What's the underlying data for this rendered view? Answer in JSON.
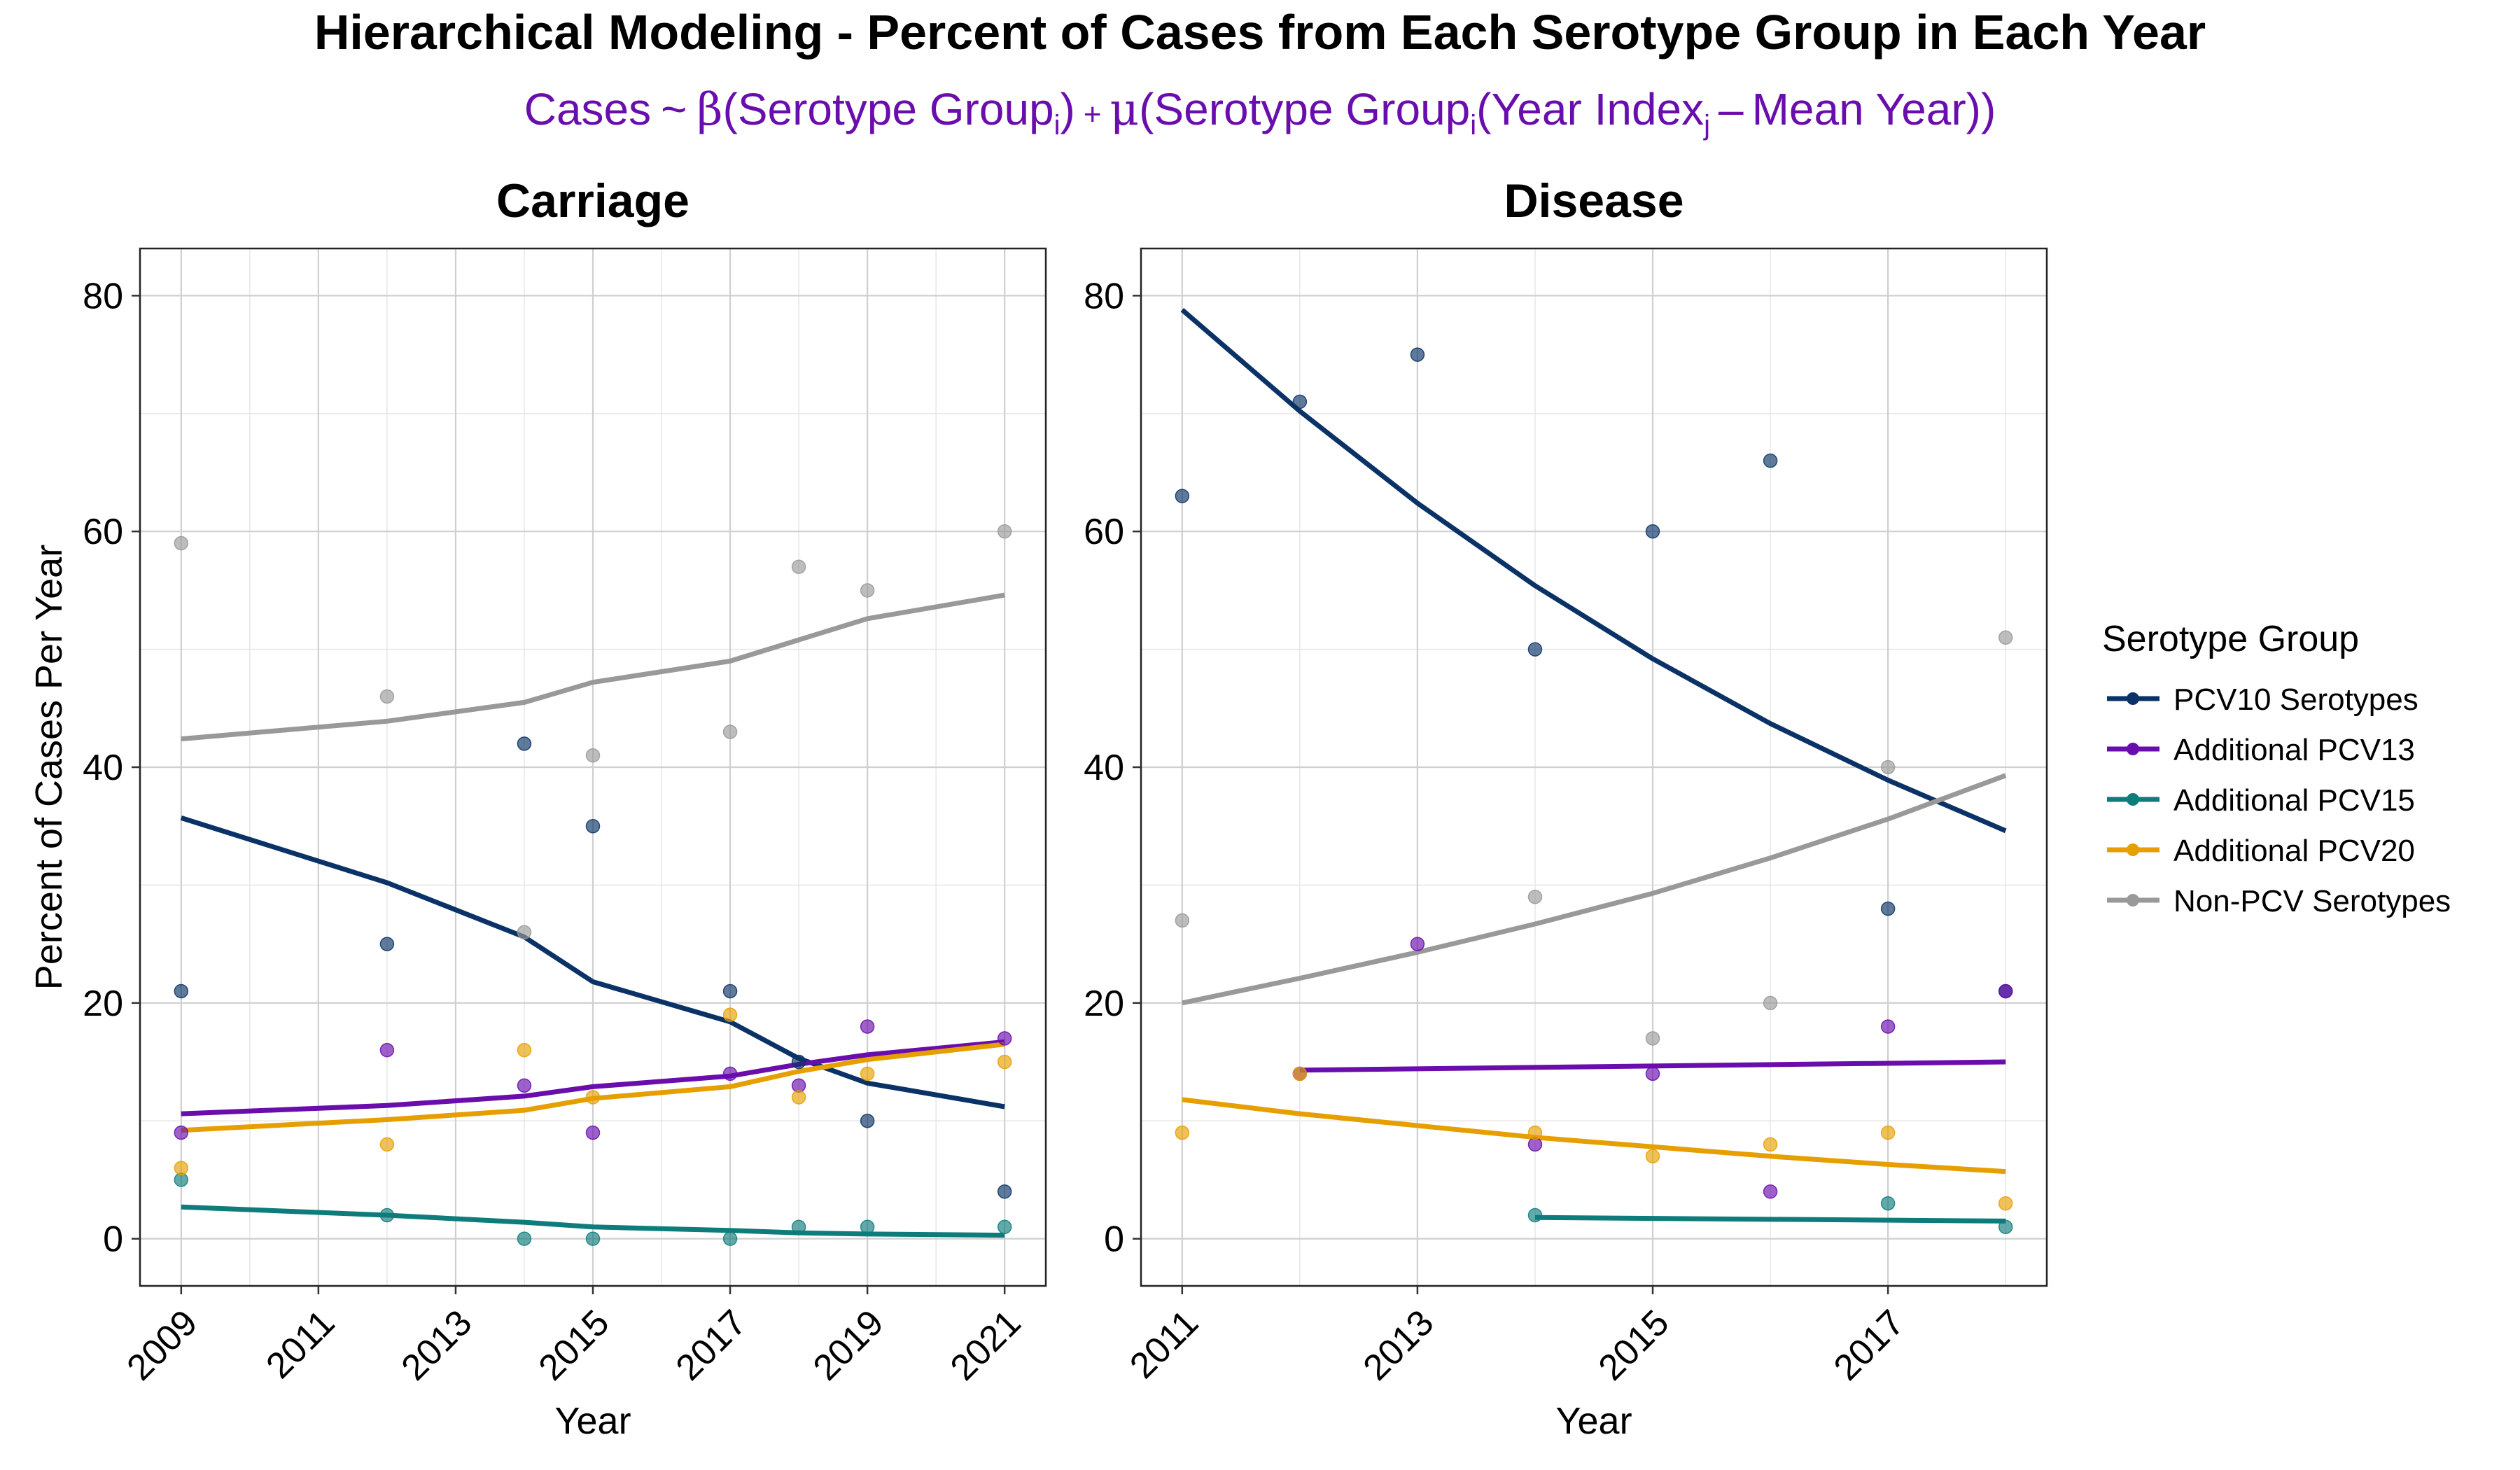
{
  "title": "Hierarchical Modeling - Percent of Cases from Each Serotype Group in Each Year",
  "subtitle": {
    "cases": "Cases",
    "tilde": "~",
    "beta": "β",
    "serotype_group": "Serotype Group",
    "sub_i": "i",
    "plus": "+",
    "mu": "μ",
    "year_index": "Year Index",
    "sub_j": "j",
    "minus": "–",
    "mean_year": "Mean Year"
  },
  "legend": {
    "title": "Serotype Group",
    "items": [
      {
        "label": "PCV10 Serotypes",
        "color": "#0B3267"
      },
      {
        "label": "Additional PCV13",
        "color": "#6A0DAD"
      },
      {
        "label": "Additional PCV15",
        "color": "#0E7C7B"
      },
      {
        "label": "Additional PCV20",
        "color": "#E69F00"
      },
      {
        "label": "Non-PCV Serotypes",
        "color": "#999999"
      }
    ]
  },
  "chart_data": [
    {
      "type": "line",
      "title": "Carriage",
      "xlabel": "Year",
      "ylabel": "Percent of Cases Per Year",
      "xlim": [
        2008.4,
        2021.6
      ],
      "ylim": [
        -4,
        84
      ],
      "x_ticks": [
        2009,
        2011,
        2013,
        2015,
        2017,
        2019,
        2021
      ],
      "y_ticks": [
        0,
        20,
        40,
        60,
        80
      ],
      "grid": true,
      "series": [
        {
          "name": "PCV10 Serotypes",
          "color": "#0B3267",
          "line": {
            "x": [
              2009,
              2012,
              2014,
              2015,
              2017,
              2018,
              2019,
              2021
            ],
            "y": [
              35.7,
              30.2,
              25.6,
              21.8,
              18.4,
              15.3,
              13.2,
              11.2
            ]
          },
          "points": {
            "x": [
              2009,
              2012,
              2014,
              2015,
              2017,
              2018,
              2019,
              2021
            ],
            "y": [
              21,
              25,
              42,
              35,
              21,
              15,
              10,
              4
            ]
          }
        },
        {
          "name": "Additional PCV13",
          "color": "#6A0DAD",
          "line": {
            "x": [
              2009,
              2012,
              2014,
              2015,
              2017,
              2018,
              2019,
              2021
            ],
            "y": [
              10.6,
              11.3,
              12.1,
              12.9,
              13.8,
              14.8,
              15.6,
              16.7
            ]
          },
          "points": {
            "x": [
              2009,
              2012,
              2014,
              2015,
              2017,
              2018,
              2019,
              2021
            ],
            "y": [
              9,
              16,
              13,
              9,
              14,
              13,
              18,
              17
            ]
          }
        },
        {
          "name": "Additional PCV15",
          "color": "#0E7C7B",
          "line": {
            "x": [
              2009,
              2012,
              2014,
              2015,
              2017,
              2018,
              2019,
              2021
            ],
            "y": [
              2.7,
              2.0,
              1.4,
              1.0,
              0.7,
              0.5,
              0.4,
              0.3
            ]
          },
          "points": {
            "x": [
              2009,
              2012,
              2014,
              2015,
              2017,
              2018,
              2019,
              2021
            ],
            "y": [
              5,
              2,
              0,
              0,
              0,
              1,
              1,
              1
            ]
          }
        },
        {
          "name": "Additional PCV20",
          "color": "#E69F00",
          "line": {
            "x": [
              2009,
              2012,
              2014,
              2015,
              2017,
              2018,
              2019,
              2021
            ],
            "y": [
              9.2,
              10.1,
              10.9,
              11.9,
              12.9,
              14.2,
              15.2,
              16.5
            ]
          },
          "points": {
            "x": [
              2009,
              2012,
              2014,
              2015,
              2017,
              2018,
              2019,
              2021
            ],
            "y": [
              6,
              8,
              16,
              12,
              19,
              12,
              14,
              15
            ]
          }
        },
        {
          "name": "Non-PCV Serotypes",
          "color": "#999999",
          "line": {
            "x": [
              2009,
              2012,
              2014,
              2015,
              2017,
              2018,
              2019,
              2021
            ],
            "y": [
              42.4,
              43.9,
              45.5,
              47.2,
              49.0,
              50.8,
              52.6,
              54.6
            ]
          },
          "points": {
            "x": [
              2009,
              2012,
              2014,
              2015,
              2017,
              2018,
              2019,
              2021
            ],
            "y": [
              59,
              46,
              26,
              41,
              43,
              57,
              55,
              60
            ]
          }
        }
      ]
    },
    {
      "type": "line",
      "title": "Disease",
      "xlabel": "Year",
      "ylabel": "",
      "xlim": [
        2010.65,
        2018.35
      ],
      "ylim": [
        -4,
        84
      ],
      "x_ticks": [
        2011,
        2013,
        2015,
        2017
      ],
      "y_ticks": [
        0,
        20,
        40,
        60,
        80
      ],
      "grid": true,
      "series": [
        {
          "name": "PCV10 Serotypes",
          "color": "#0B3267",
          "line": {
            "x": [
              2011,
              2012,
              2013,
              2014,
              2015,
              2016,
              2017,
              2018
            ],
            "y": [
              78.8,
              70.2,
              62.4,
              55.4,
              49.2,
              43.7,
              38.9,
              34.6
            ]
          },
          "points": {
            "x": [
              2011,
              2012,
              2013,
              2014,
              2015,
              2016,
              2017,
              2018
            ],
            "y": [
              63,
              71,
              75,
              50,
              60,
              66,
              28,
              21
            ]
          }
        },
        {
          "name": "Additional PCV13",
          "color": "#6A0DAD",
          "line": {
            "x": [
              2012,
              2018
            ],
            "y": [
              14.3,
              15.0
            ]
          },
          "points": {
            "x": [
              2012,
              2013,
              2014,
              2015,
              2016,
              2017,
              2018
            ],
            "y": [
              14,
              25,
              8,
              14,
              4,
              18,
              21
            ]
          }
        },
        {
          "name": "Additional PCV15",
          "color": "#0E7C7B",
          "line": {
            "x": [
              2014,
              2018
            ],
            "y": [
              1.8,
              1.5
            ]
          },
          "points": {
            "x": [
              2014,
              2017,
              2018
            ],
            "y": [
              2,
              3,
              1
            ]
          }
        },
        {
          "name": "Additional PCV20",
          "color": "#E69F00",
          "line": {
            "x": [
              2011,
              2012,
              2013,
              2014,
              2015,
              2016,
              2017,
              2018
            ],
            "y": [
              11.8,
              10.6,
              9.6,
              8.6,
              7.8,
              7.0,
              6.3,
              5.7
            ]
          },
          "points": {
            "x": [
              2011,
              2012,
              2014,
              2015,
              2016,
              2017,
              2018
            ],
            "y": [
              9,
              14,
              9,
              7,
              8,
              9,
              3
            ]
          }
        },
        {
          "name": "Non-PCV Serotypes",
          "color": "#999999",
          "line": {
            "x": [
              2011,
              2012,
              2013,
              2014,
              2015,
              2016,
              2017,
              2018
            ],
            "y": [
              20.0,
              22.1,
              24.3,
              26.7,
              29.3,
              32.3,
              35.6,
              39.3
            ]
          },
          "points": {
            "x": [
              2011,
              2014,
              2015,
              2016,
              2017,
              2018
            ],
            "y": [
              27,
              29,
              17,
              20,
              40,
              51
            ]
          }
        }
      ]
    }
  ]
}
